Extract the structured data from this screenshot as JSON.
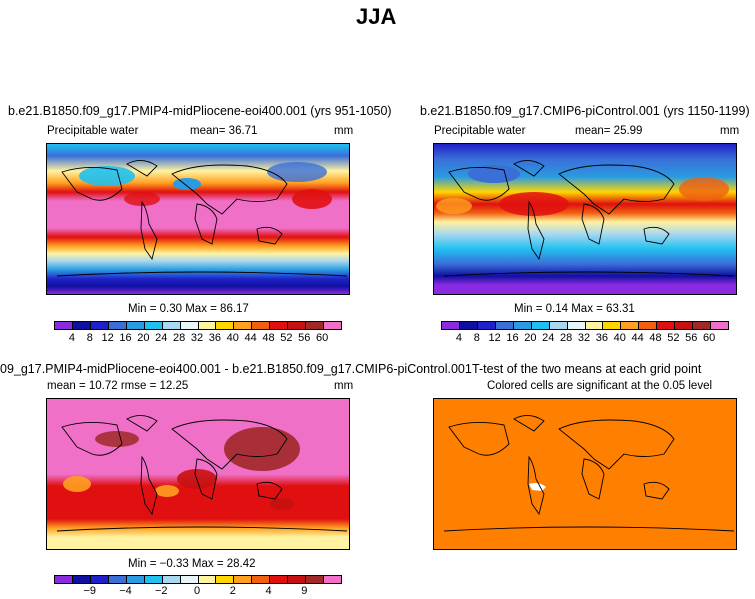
{
  "figure": {
    "title": "JJA"
  },
  "panels": [
    {
      "id": "top-left",
      "title": "b.e21.B1850.f09_g17.PMIP4-midPliocene-eoi400.001 (yrs 951-1050)",
      "variable": "Precipitable water",
      "stat": "mean=   36.71",
      "units": "mm",
      "minmax": "Min =    0.30 Max =   86.17",
      "colorbar_labels": [
        "4",
        "8",
        "12",
        "16",
        "20",
        "24",
        "28",
        "32",
        "36",
        "40",
        "44",
        "48",
        "52",
        "56",
        "60"
      ]
    },
    {
      "id": "top-right",
      "title": "b.e21.B1850.f09_g17.CMIP6-piControl.001 (yrs 1150-1199)",
      "variable": "Precipitable water",
      "stat": "mean=   25.99",
      "units": "mm",
      "minmax": "Min =    0.14 Max =   63.31",
      "colorbar_labels": [
        "4",
        "8",
        "12",
        "16",
        "20",
        "24",
        "28",
        "32",
        "36",
        "40",
        "44",
        "48",
        "52",
        "56",
        "60"
      ]
    },
    {
      "id": "bottom-left",
      "title": "09_g17.PMIP4-midPliocene-eoi400.001 - b.e21.B1850.f09_g17.CMIP6-piControl.001",
      "stat": "mean =   10.72      rmse =   12.25",
      "units": "mm",
      "minmax": "Min =  −0.33 Max =   28.42",
      "colorbar_labels": [
        "−9",
        "−4",
        "−2",
        "0",
        "2",
        "4",
        "9"
      ]
    },
    {
      "id": "bottom-right",
      "title": "T-test of the two means at each grid point",
      "subtitle": "Colored cells are significant at the 0.05 level"
    }
  ],
  "colors": {
    "abs_scale": [
      "#8a2be2",
      "#1010a0",
      "#2020c8",
      "#3a6fd8",
      "#2a9be0",
      "#20c0f0",
      "#a8d8f0",
      "#e8f6f8",
      "#fff2a0",
      "#ffd700",
      "#ffa020",
      "#f06010",
      "#e01010",
      "#c81010",
      "#a02828",
      "#f070c8"
    ],
    "diff_scale": [
      "#8a2be2",
      "#1010a0",
      "#2020c8",
      "#3a6fd8",
      "#2a9be0",
      "#20c0f0",
      "#a8d8f0",
      "#e8f6f8",
      "#fff2a0",
      "#ffd700",
      "#ffa020",
      "#f06010",
      "#e01010",
      "#c81010",
      "#a02828",
      "#f070c8"
    ],
    "ttest_fill": "#ff7f00"
  }
}
